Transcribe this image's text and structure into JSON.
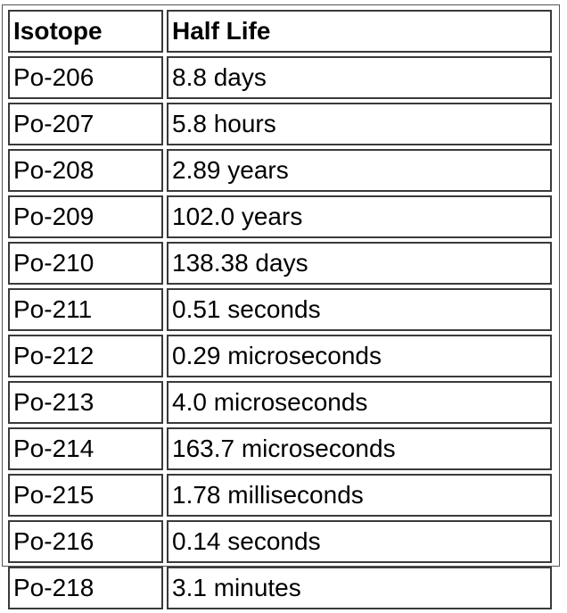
{
  "table": {
    "headers": {
      "isotope": "Isotope",
      "half_life": "Half Life"
    },
    "rows": [
      {
        "isotope": "Po-206",
        "half_life": "8.8 days"
      },
      {
        "isotope": "Po-207",
        "half_life": "5.8 hours"
      },
      {
        "isotope": "Po-208",
        "half_life": "2.89 years"
      },
      {
        "isotope": "Po-209",
        "half_life": "102.0 years"
      },
      {
        "isotope": "Po-210",
        "half_life": "138.38 days"
      },
      {
        "isotope": "Po-211",
        "half_life": "0.51 seconds"
      },
      {
        "isotope": "Po-212",
        "half_life": "0.29 microseconds"
      },
      {
        "isotope": "Po-213",
        "half_life": "4.0 microseconds"
      },
      {
        "isotope": "Po-214",
        "half_life": "163.7 microseconds"
      },
      {
        "isotope": "Po-215",
        "half_life": "1.78 milliseconds"
      },
      {
        "isotope": "Po-216",
        "half_life": "0.14 seconds"
      },
      {
        "isotope": "Po-218",
        "half_life": "3.1 minutes"
      }
    ]
  }
}
